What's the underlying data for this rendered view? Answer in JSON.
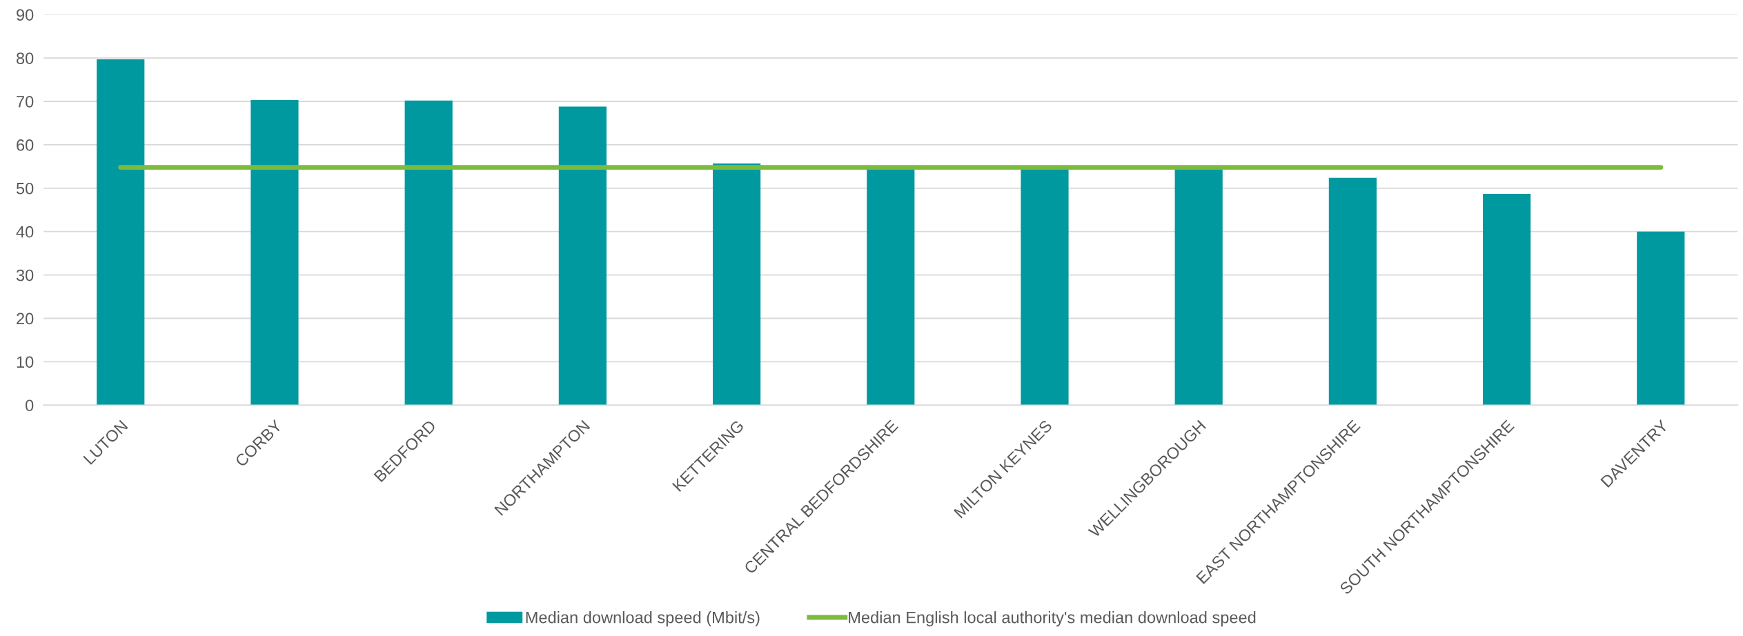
{
  "chart_data": {
    "type": "bar",
    "categories": [
      "LUTON",
      "CORBY",
      "BEDFORD",
      "NORTHAMPTON",
      "KETTERING",
      "CENTRAL BEDFORDSHIRE",
      "MILTON KEYNES",
      "WELLINGBOROUGH",
      "EAST NORTHAMPTONSHIRE",
      "SOUTH NORTHAMPTONSHIRE",
      "DAVENTRY"
    ],
    "series": [
      {
        "name": "Median download speed (Mbit/s)",
        "color": "#0099a0",
        "values": [
          79.7,
          70.3,
          70.2,
          68.8,
          55.7,
          54.5,
          54.5,
          54.5,
          52.4,
          48.7,
          40.0
        ]
      },
      {
        "name": "Median English local authority's median download speed",
        "type": "line",
        "color": "#7dbb3c",
        "values": [
          54.8,
          54.8,
          54.8,
          54.8,
          54.8,
          54.8,
          54.8,
          54.8,
          54.8,
          54.8,
          54.8
        ]
      }
    ],
    "ylim": [
      0,
      90
    ],
    "yticks": [
      0,
      10,
      20,
      30,
      40,
      50,
      60,
      70,
      80,
      90
    ],
    "grid": "y",
    "legend": "bottom",
    "marker": "none",
    "line_style": "solid"
  }
}
